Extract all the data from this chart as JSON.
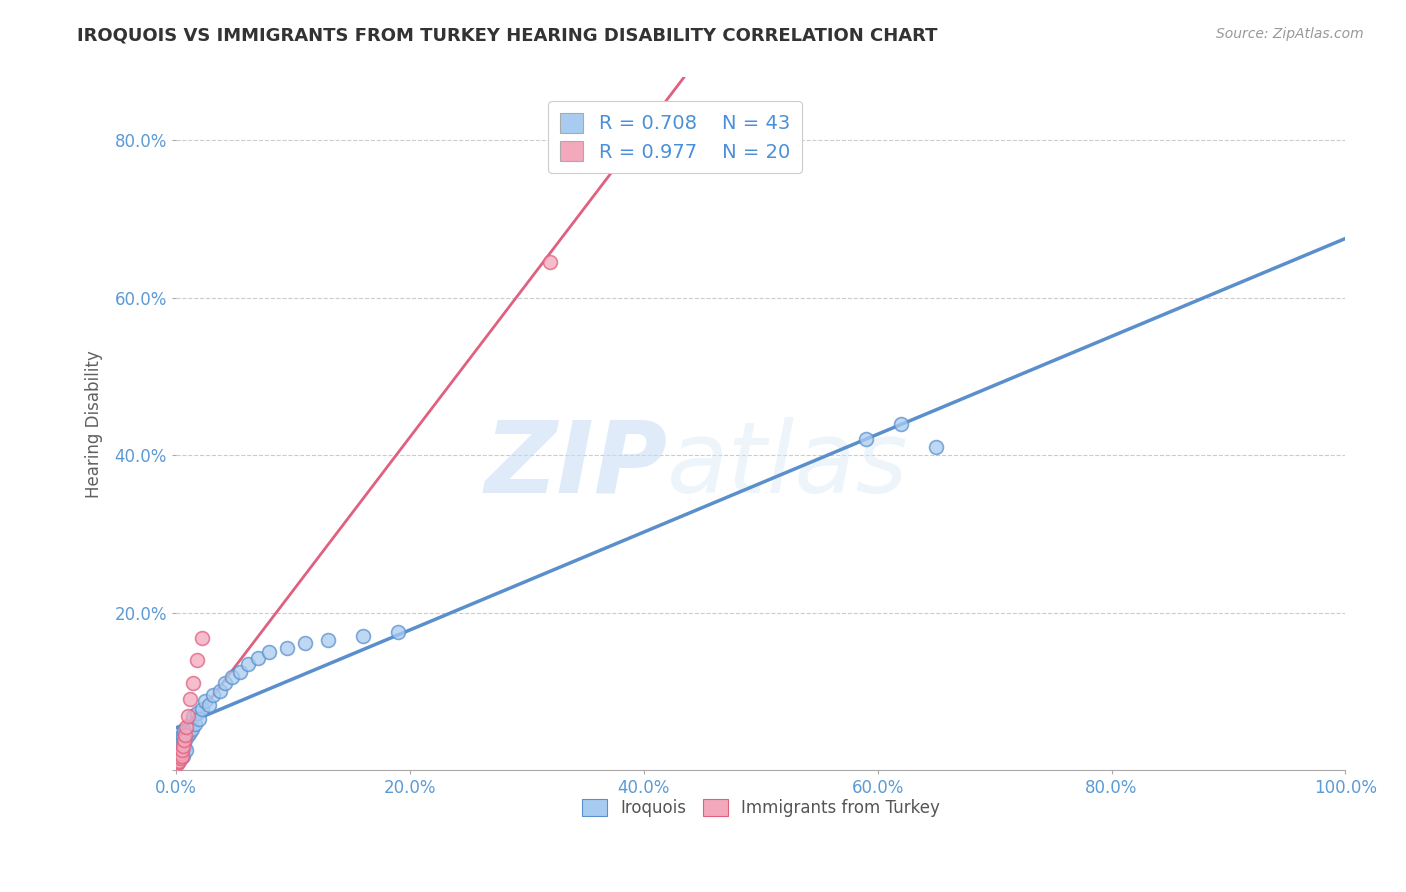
{
  "title": "IROQUOIS VS IMMIGRANTS FROM TURKEY HEARING DISABILITY CORRELATION CHART",
  "source_text": "Source: ZipAtlas.com",
  "ylabel": "Hearing Disability",
  "xlim": [
    0,
    1.0
  ],
  "ylim": [
    0,
    0.88
  ],
  "xticks": [
    0.0,
    0.2,
    0.4,
    0.6,
    0.8,
    1.0
  ],
  "xtick_labels": [
    "0.0%",
    "20.0%",
    "40.0%",
    "60.0%",
    "80.0%",
    "100.0%"
  ],
  "yticks": [
    0.0,
    0.2,
    0.4,
    0.6,
    0.8
  ],
  "ytick_labels": [
    "",
    "20.0%",
    "40.0%",
    "60.0%",
    "80.0%"
  ],
  "legend_r1": "0.708",
  "legend_n1": "43",
  "legend_r2": "0.977",
  "legend_n2": "20",
  "color_iroquois": "#A8CCF0",
  "color_turkey": "#F4A8BC",
  "line_color_iroquois": "#5B8FCC",
  "line_color_turkey": "#E06080",
  "watermark_zip": "ZIP",
  "watermark_atlas": "atlas",
  "background_color": "#FFFFFF",
  "grid_color": "#CCCCCC",
  "axis_label_color": "#5B9BD5",
  "title_color": "#333333",
  "iroquois_x": [
    0.001,
    0.002,
    0.002,
    0.003,
    0.003,
    0.004,
    0.004,
    0.005,
    0.005,
    0.006,
    0.006,
    0.007,
    0.007,
    0.008,
    0.009,
    0.01,
    0.011,
    0.012,
    0.013,
    0.014,
    0.015,
    0.016,
    0.018,
    0.02,
    0.022,
    0.025,
    0.028,
    0.032,
    0.038,
    0.042,
    0.048,
    0.055,
    0.062,
    0.07,
    0.08,
    0.095,
    0.11,
    0.13,
    0.16,
    0.19,
    0.59,
    0.62,
    0.65
  ],
  "iroquois_y": [
    0.02,
    0.028,
    0.035,
    0.015,
    0.04,
    0.025,
    0.038,
    0.032,
    0.045,
    0.018,
    0.042,
    0.028,
    0.05,
    0.038,
    0.025,
    0.045,
    0.055,
    0.048,
    0.06,
    0.052,
    0.068,
    0.058,
    0.072,
    0.065,
    0.078,
    0.088,
    0.082,
    0.095,
    0.1,
    0.11,
    0.118,
    0.125,
    0.135,
    0.142,
    0.15,
    0.155,
    0.162,
    0.165,
    0.17,
    0.175,
    0.42,
    0.44,
    0.41
  ],
  "turkey_x": [
    0.001,
    0.001,
    0.002,
    0.002,
    0.003,
    0.003,
    0.004,
    0.004,
    0.005,
    0.005,
    0.006,
    0.007,
    0.008,
    0.009,
    0.01,
    0.012,
    0.015,
    0.018,
    0.022,
    0.32
  ],
  "turkey_y": [
    0.008,
    0.012,
    0.01,
    0.015,
    0.012,
    0.018,
    0.015,
    0.022,
    0.018,
    0.025,
    0.03,
    0.038,
    0.045,
    0.055,
    0.068,
    0.09,
    0.11,
    0.14,
    0.168,
    0.645
  ]
}
